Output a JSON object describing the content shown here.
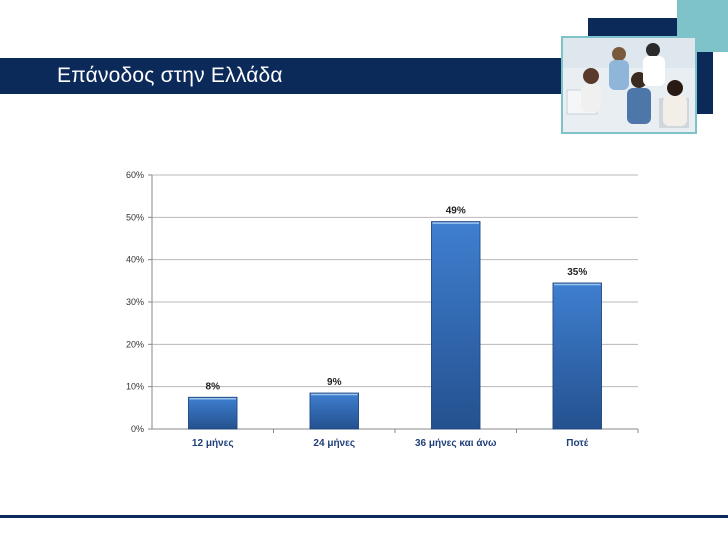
{
  "slide": {
    "title": "Επάνοδος στην Ελλάδα"
  },
  "colors": {
    "navy": "#0b2a5a",
    "teal": "#7ec3c9",
    "bar": "#2e67b1"
  },
  "chart_data": {
    "type": "bar",
    "categories": [
      "12 μήνες",
      "24 μήνες",
      "36 μήνες και άνω",
      "Ποτέ"
    ],
    "values": [
      7.5,
      8.5,
      49,
      34.5
    ],
    "data_labels": [
      "8%",
      "9%",
      "49%",
      "35%"
    ],
    "y_ticks": [
      "0%",
      "10%",
      "20%",
      "30%",
      "40%",
      "50%",
      "60%"
    ],
    "ylim": [
      0,
      60
    ],
    "title": "",
    "xlabel": "",
    "ylabel": "",
    "grid": true,
    "legend": "none"
  }
}
